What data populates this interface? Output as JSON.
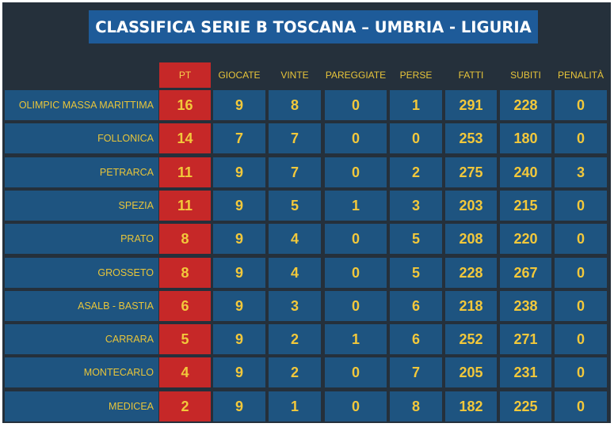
{
  "title": "CLASSIFICA SERIE B TOSCANA – UMBRIA - LIGURIA",
  "columns": [
    "PT",
    "GIOCATE",
    "VINTE",
    "PAREGGIATE",
    "PERSE",
    "FATTI",
    "SUBITI",
    "PENALITÀ"
  ],
  "rows": [
    {
      "team": "OLIMPIC MASSA MARITTIMA",
      "values": [
        "16",
        "9",
        "8",
        "0",
        "1",
        "291",
        "228",
        "0"
      ]
    },
    {
      "team": "FOLLONICA",
      "values": [
        "14",
        "7",
        "7",
        "0",
        "0",
        "253",
        "180",
        "0"
      ]
    },
    {
      "team": "PETRARCA",
      "values": [
        "11",
        "9",
        "7",
        "0",
        "2",
        "275",
        "240",
        "3"
      ]
    },
    {
      "team": "SPEZIA",
      "values": [
        "11",
        "9",
        "5",
        "1",
        "3",
        "203",
        "215",
        "0"
      ]
    },
    {
      "team": "PRATO",
      "values": [
        "8",
        "9",
        "4",
        "0",
        "5",
        "208",
        "220",
        "0"
      ]
    },
    {
      "team": "GROSSETO",
      "values": [
        "8",
        "9",
        "4",
        "0",
        "5",
        "228",
        "267",
        "0"
      ]
    },
    {
      "team": "ASALB - BASTIA",
      "values": [
        "6",
        "9",
        "3",
        "0",
        "6",
        "218",
        "238",
        "0"
      ]
    },
    {
      "team": "CARRARA",
      "values": [
        "5",
        "9",
        "2",
        "1",
        "6",
        "252",
        "271",
        "0"
      ]
    },
    {
      "team": "MONTECARLO",
      "values": [
        "4",
        "9",
        "2",
        "0",
        "7",
        "205",
        "231",
        "0"
      ]
    },
    {
      "team": "MEDICEA",
      "values": [
        "2",
        "9",
        "1",
        "0",
        "8",
        "182",
        "225",
        "0"
      ]
    }
  ],
  "colors": {
    "background": "#25303b",
    "title_bg": "#1e5b99",
    "cell_bg": "#1e5480",
    "points_bg": "#c62828",
    "text": "#f2c83b"
  }
}
